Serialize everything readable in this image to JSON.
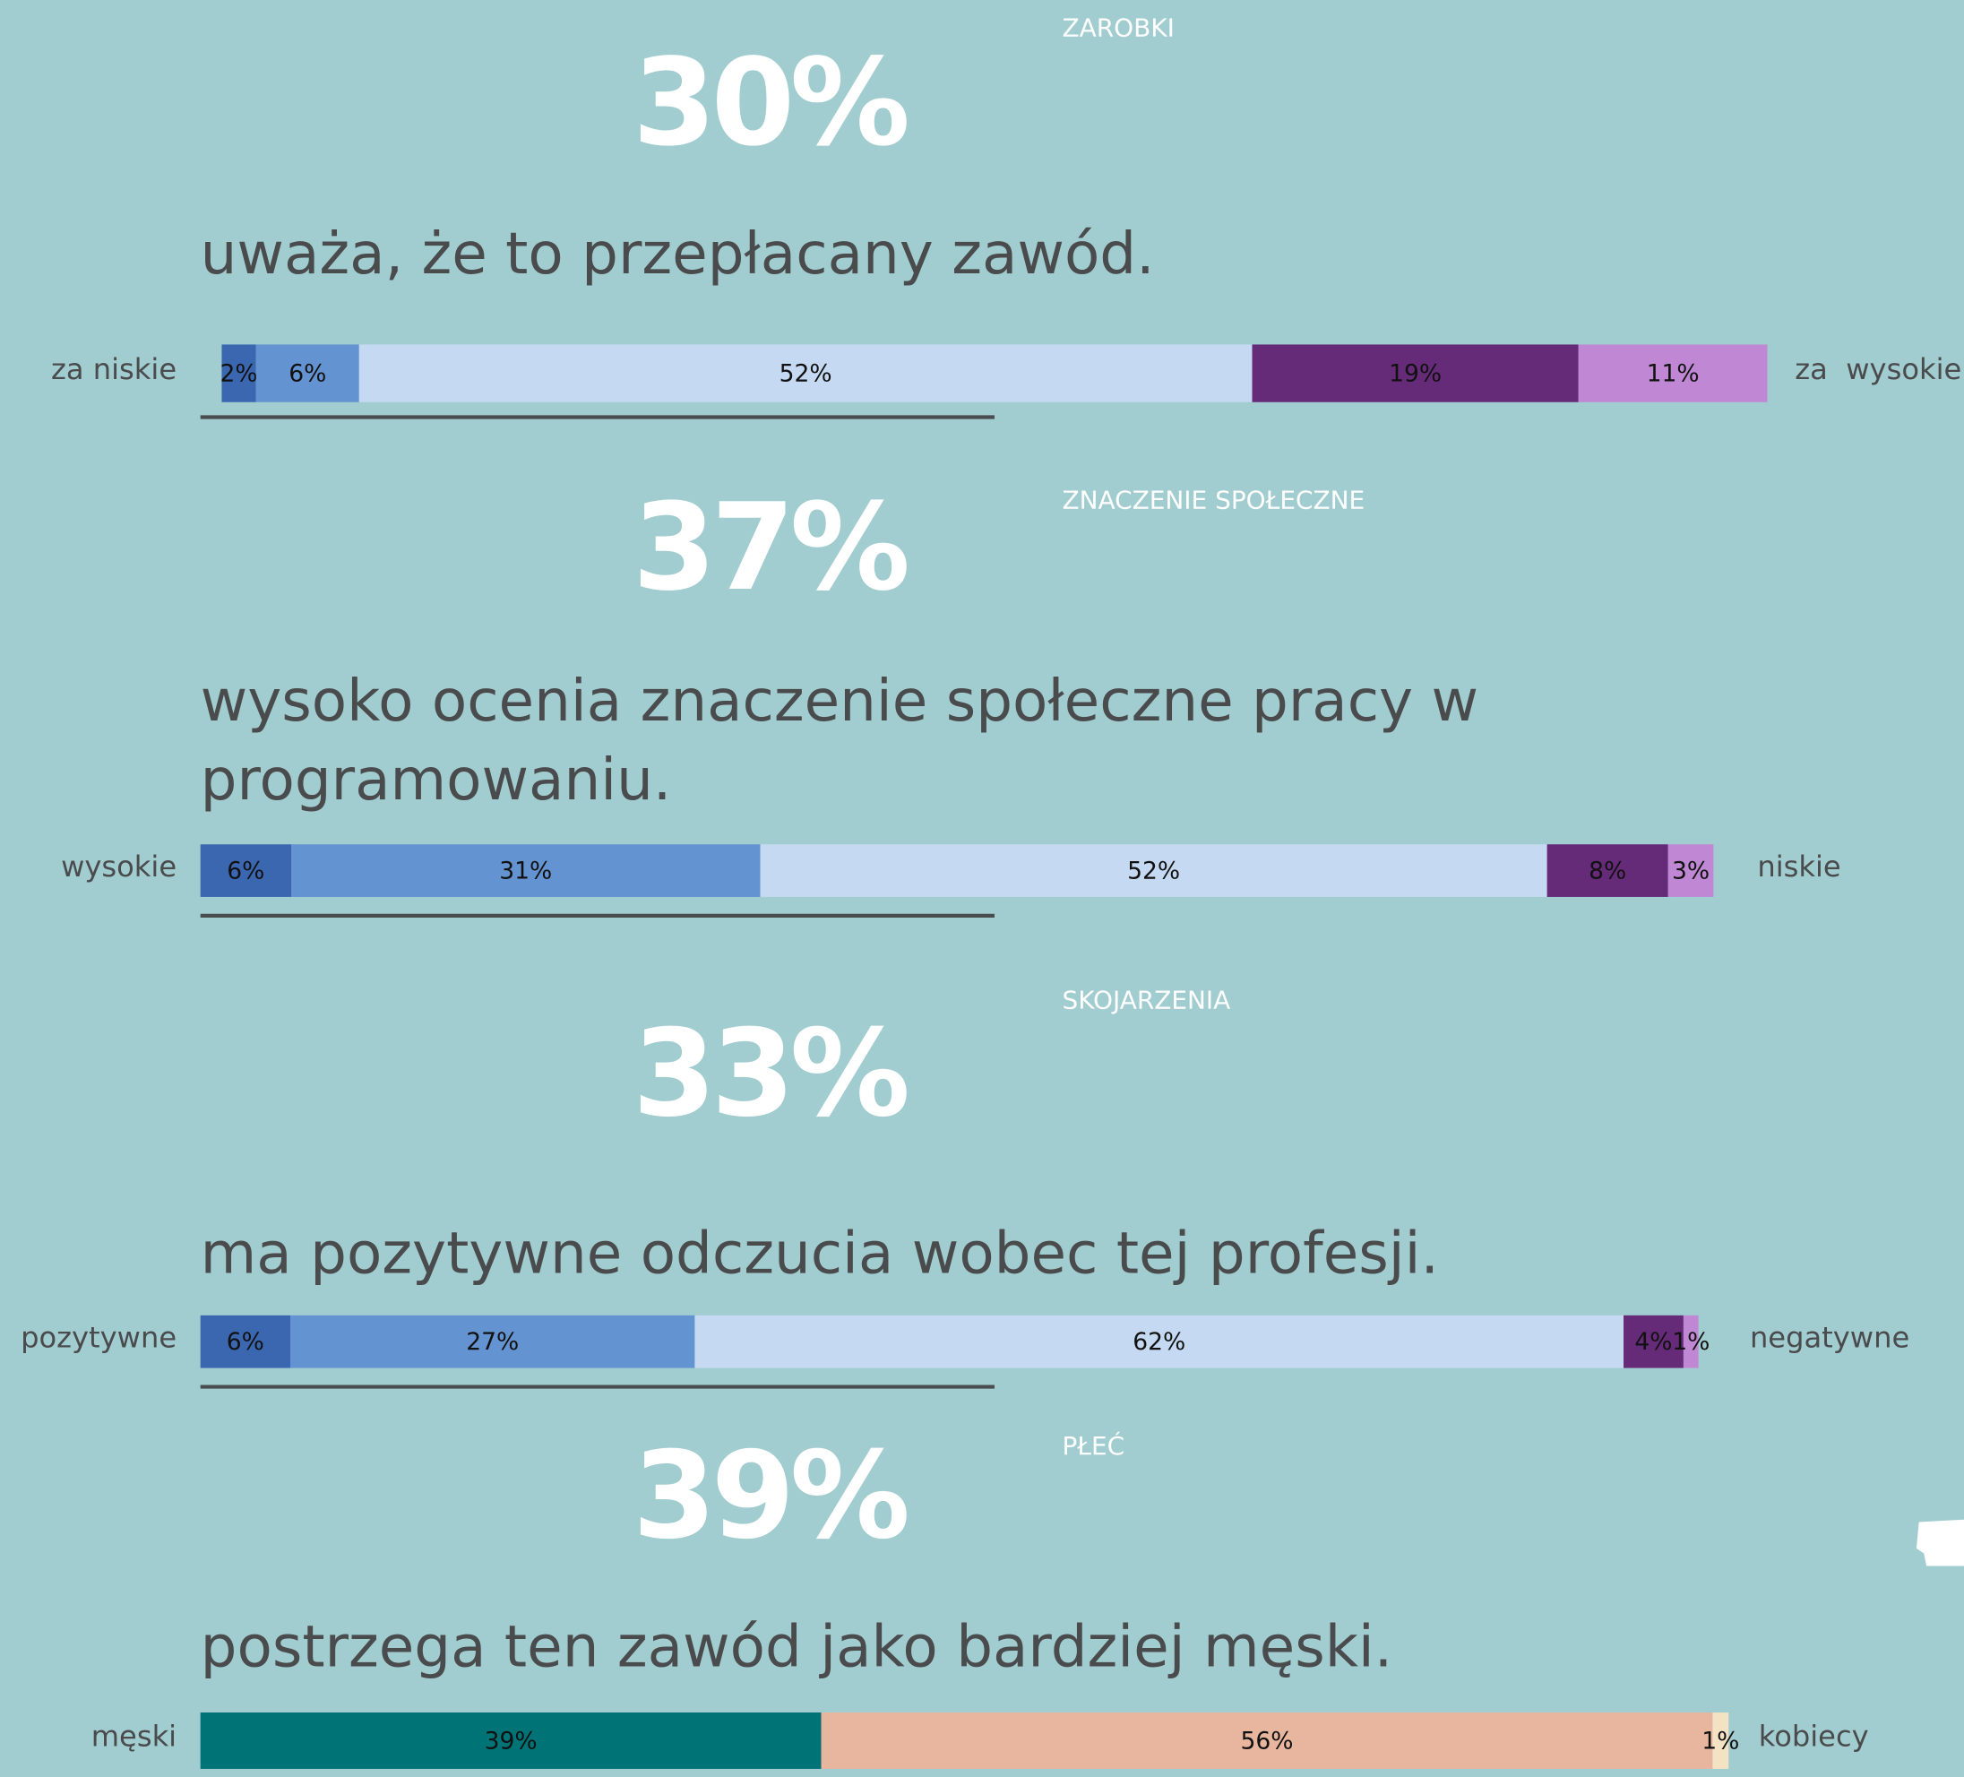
{
  "chart_data": [
    {
      "type": "stacked-bar",
      "section_label": "ZAROBKI",
      "headline": "30%",
      "text": [
        "uważa, że to przepłacany zawód."
      ],
      "left_label": "za niskie",
      "right_label": "za  wysokie",
      "values": [
        2,
        6,
        52,
        19,
        11
      ],
      "value_labels": [
        "2%",
        "6%",
        "52%",
        "19%",
        "11%"
      ],
      "colors": [
        "#3a67b0",
        "#6393d0",
        "#c5daf2",
        "#652a78",
        "#c088d4"
      ]
    },
    {
      "type": "stacked-bar",
      "section_label": "ZNACZENIE SPOŁECZNE",
      "headline": "37%",
      "text": [
        "wysoko ocenia znaczenie społeczne pracy w",
        "programowaniu."
      ],
      "left_label": "wysokie",
      "right_label": "niskie",
      "values": [
        6,
        31,
        52,
        8,
        3
      ],
      "value_labels": [
        "6%",
        "31%",
        "52%",
        "8%",
        "3%"
      ],
      "colors": [
        "#3a67b0",
        "#6393d0",
        "#c5daf2",
        "#652a78",
        "#c088d4"
      ]
    },
    {
      "type": "stacked-bar",
      "section_label": "SKOJARZENIA",
      "headline": "33%",
      "text": [
        "ma pozytywne odczucia wobec tej profesji."
      ],
      "left_label": "pozytywne",
      "right_label": "negatywne",
      "values": [
        6,
        27,
        62,
        4,
        1
      ],
      "value_labels": [
        "6%",
        "27%",
        "62%",
        "4%",
        "1%"
      ],
      "colors": [
        "#3a67b0",
        "#6393d0",
        "#c5daf2",
        "#652a78",
        "#c088d4"
      ]
    },
    {
      "type": "stacked-bar",
      "section_label": "PŁEĆ",
      "headline": "39%",
      "text": [
        "postrzega ten zawód jako bardziej męski."
      ],
      "left_label": "męski",
      "right_label": "kobiecy",
      "values": [
        39,
        56,
        1
      ],
      "value_labels": [
        "39%",
        "56%",
        "1%"
      ],
      "colors": [
        "#007377",
        "#e8b69e",
        "#f3e2c4"
      ]
    }
  ]
}
